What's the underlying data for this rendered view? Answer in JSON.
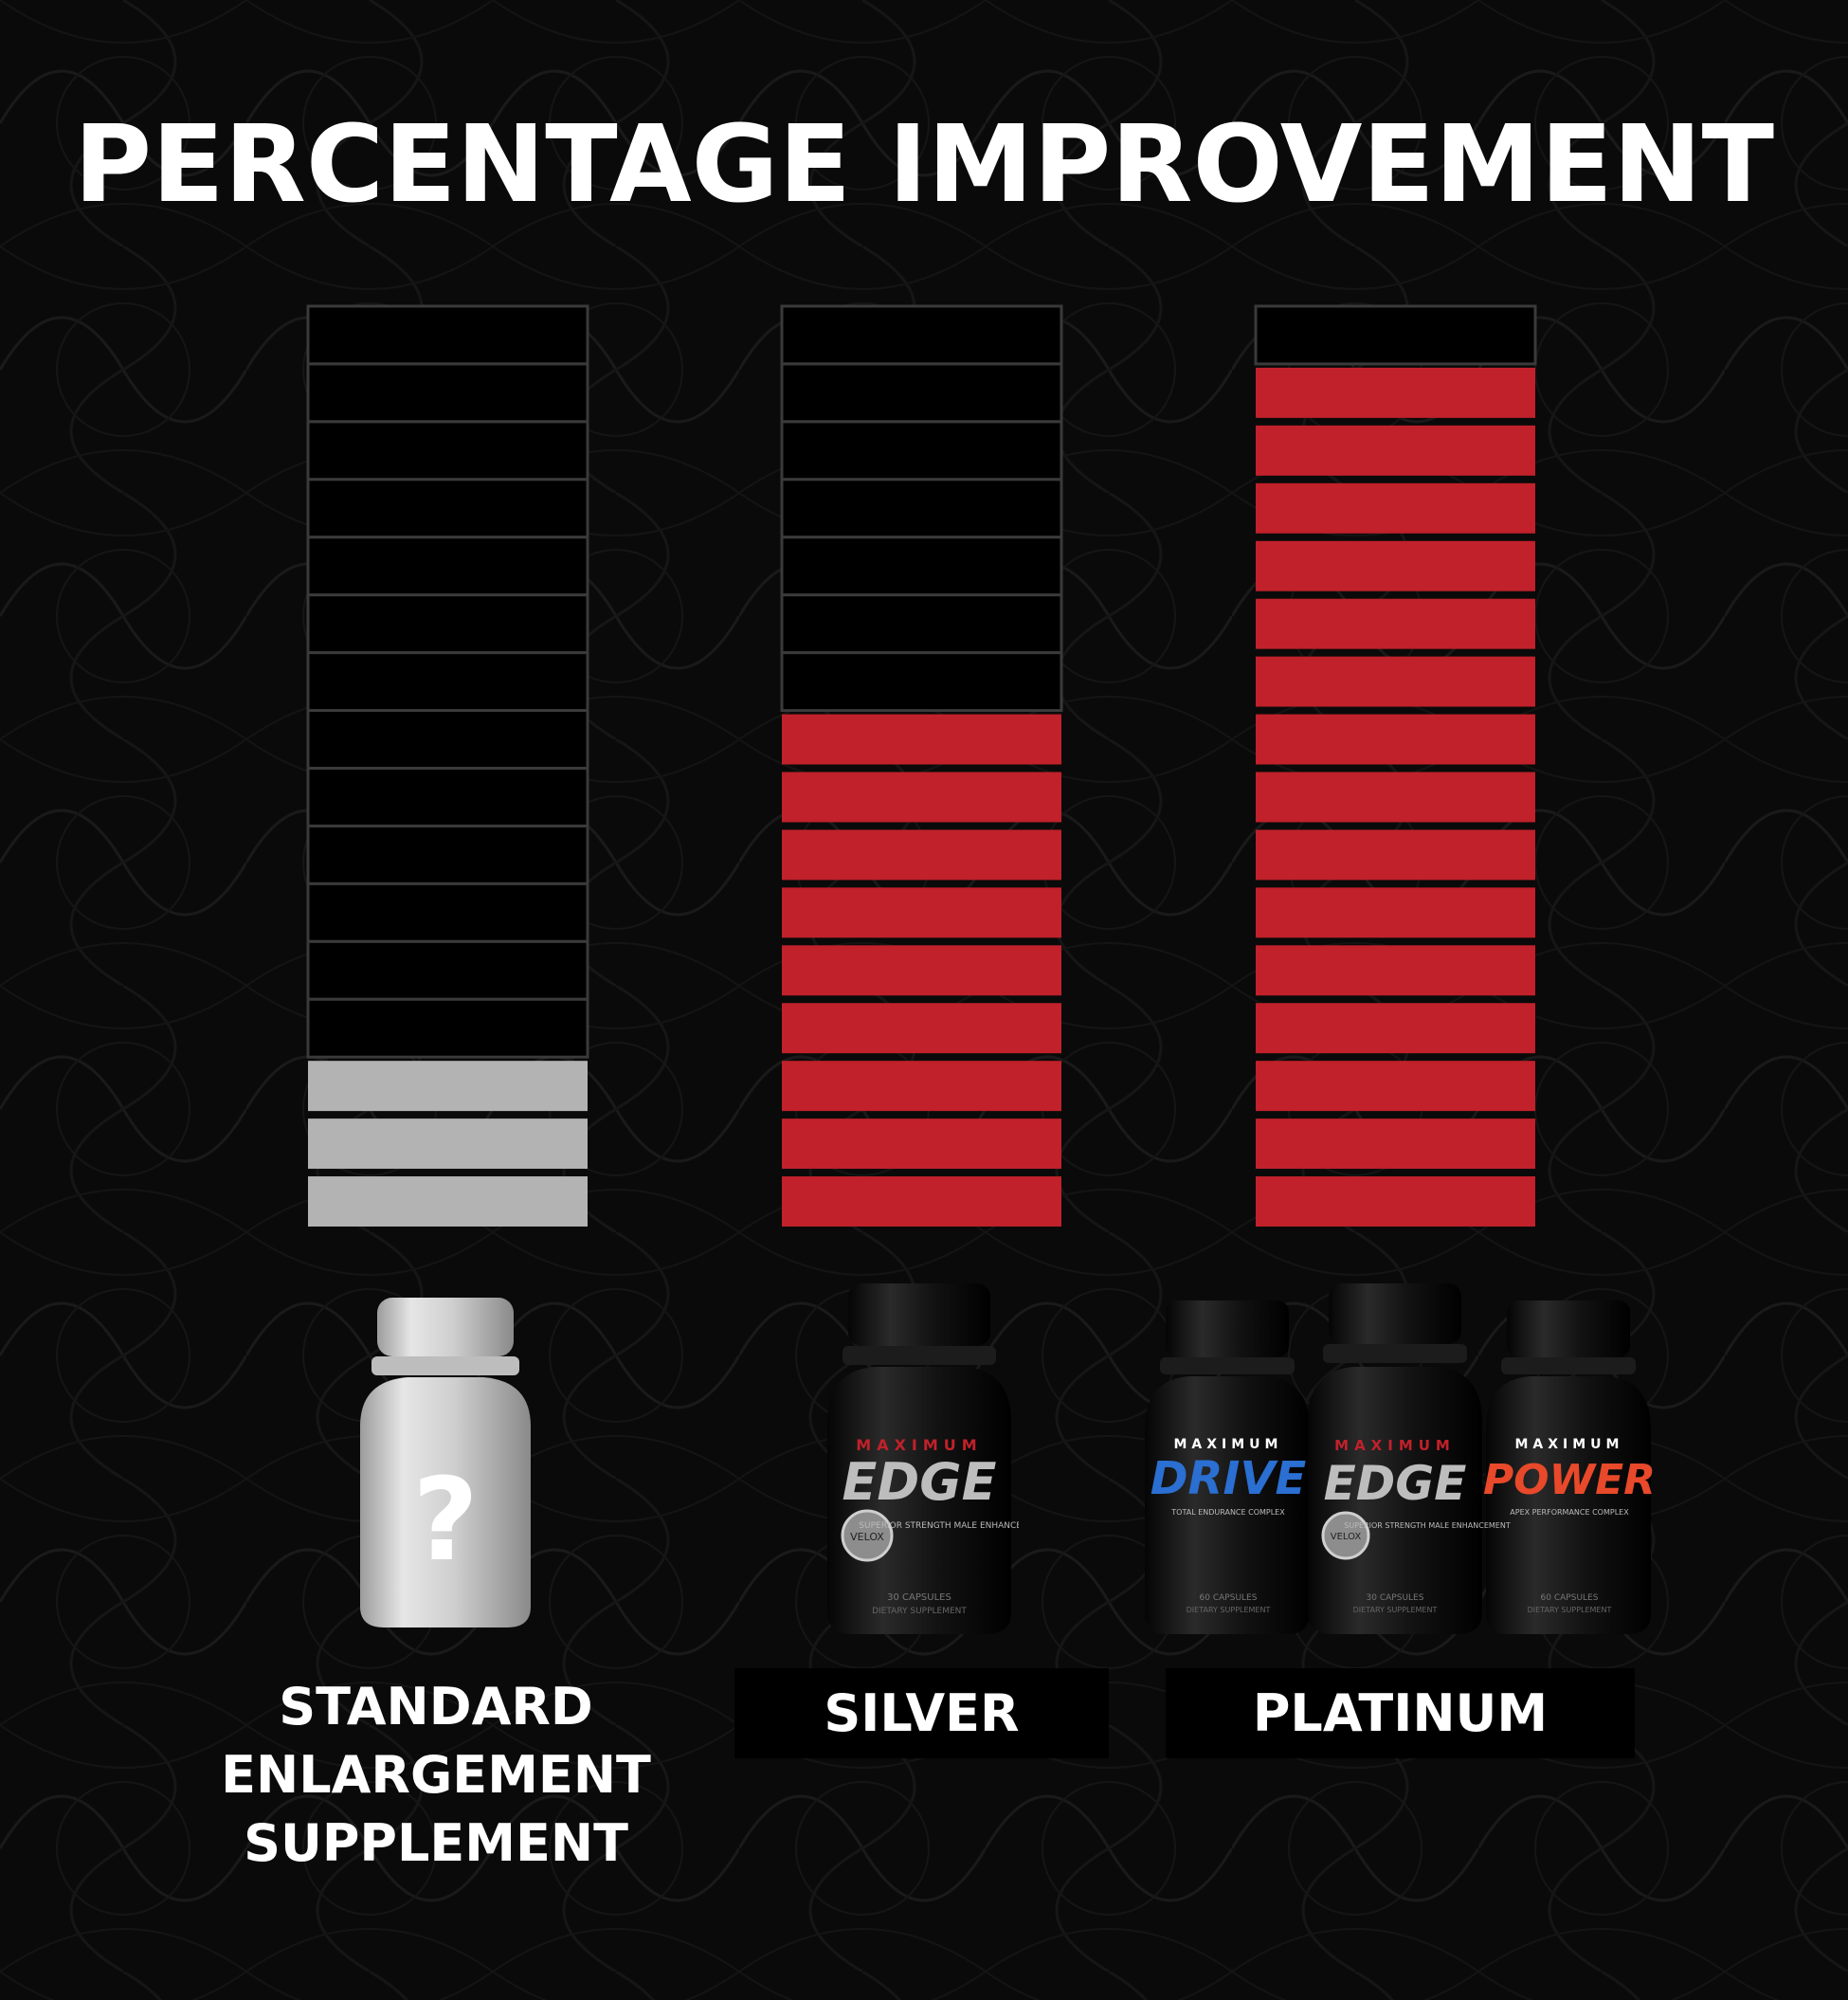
{
  "title": "PERCENTAGE IMPROVEMENT",
  "colors": {
    "background": "#0a0a0a",
    "segment_empty": "#000000",
    "segment_border": "#3a3a3a",
    "standard_fill": "#b3b3b3",
    "premium_fill": "#c1212a"
  },
  "chart_data": {
    "type": "bar",
    "categories": [
      "STANDARD ENLARGEMENT SUPPLEMENT",
      "SILVER",
      "PLATINUM"
    ],
    "segments_total": 16,
    "values": [
      3,
      9,
      15
    ],
    "unit": "filled segments of 16",
    "fill_colors": [
      "#b3b3b3",
      "#c1212a",
      "#c1212a"
    ],
    "xlabel": "",
    "ylabel": ""
  },
  "labels": {
    "standard": [
      "STANDARD",
      "ENLARGEMENT",
      "SUPPLEMENT"
    ],
    "silver": "SILVER",
    "platinum": "PLATINUM"
  },
  "products": {
    "standard": {
      "icon": "question-mark-bottle-icon",
      "mark": "?"
    },
    "silver": {
      "icon": "maximum-edge-bottle-icon",
      "brand_top": "MAXIMUM",
      "brand_main": "EDGE",
      "tagline": "SUPERIOR STRENGTH MALE ENHANCEMENT",
      "seal": "VELOX",
      "count": "30 CAPSULES",
      "sub": "DIETARY SUPPLEMENT"
    },
    "platinum": [
      {
        "icon": "maximum-drive-bottle-icon",
        "brand_top": "MAXIMUM",
        "brand_main": "DRIVE",
        "tagline": "TOTAL ENDURANCE COMPLEX",
        "count": "60 CAPSULES",
        "sub": "DIETARY SUPPLEMENT"
      },
      {
        "icon": "maximum-edge-bottle-icon",
        "brand_top": "MAXIMUM",
        "brand_main": "EDGE",
        "tagline": "SUPERIOR STRENGTH MALE ENHANCEMENT",
        "seal": "VELOX",
        "count": "30 CAPSULES",
        "sub": "DIETARY SUPPLEMENT"
      },
      {
        "icon": "maximum-power-bottle-icon",
        "brand_top": "MAXIMUM",
        "brand_main": "POWER",
        "tagline": "APEX PERFORMANCE COMPLEX",
        "count": "60 CAPSULES",
        "sub": "DIETARY SUPPLEMENT"
      }
    ]
  }
}
